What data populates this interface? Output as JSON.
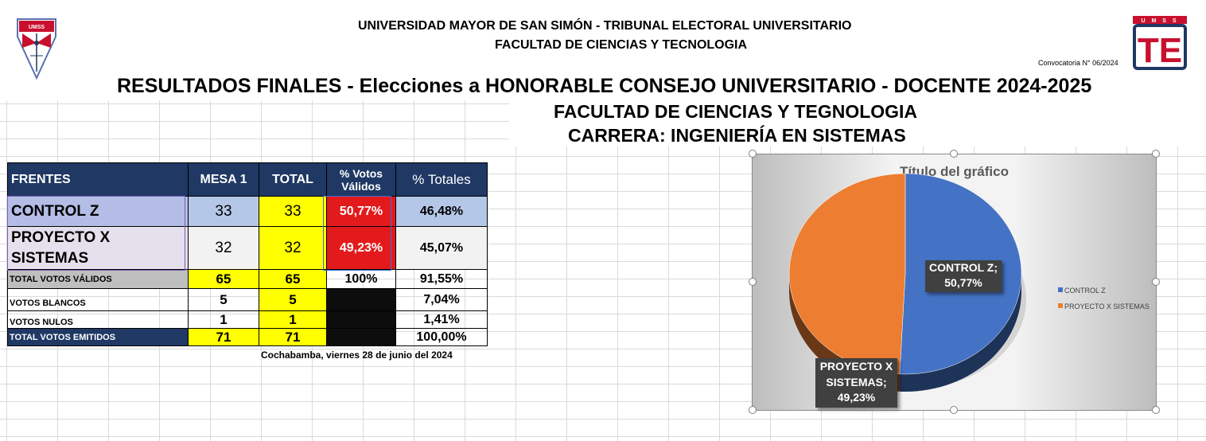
{
  "header": {
    "university": "UNIVERSIDAD MAYOR DE SAN SIMÓN - TRIBUNAL ELECTORAL UNIVERSITARIO",
    "faculty": "FACULTAD DE CIENCIAS Y TECNOLOGIA",
    "convocatoria": "Convocatoria N° 06/2024",
    "title": "RESULTADOS FINALES - Elecciones a HONORABLE CONSEJO UNIVERSITARIO - DOCENTE 2024-2025",
    "subtitle_faculty": "FACULTAD DE CIENCIAS Y TEGNOLOGIA",
    "subtitle_career": "CARRERA: INGENIERÍA EN SISTEMAS"
  },
  "logos": {
    "left_text": "UMSS",
    "right_top": "U M S S",
    "right_letters": "TE"
  },
  "table": {
    "headers": {
      "frentes": "FRENTES",
      "mesa1": "MESA 1",
      "total": "TOTAL",
      "votos_validos": "% Votos Válidos",
      "totales": "% Totales"
    },
    "rows": [
      {
        "name": "CONTROL Z",
        "mesa1": "33",
        "total": "33",
        "pct_validos": "50,77%",
        "pct_totales": "46,48%"
      },
      {
        "name": "PROYECTO X SISTEMAS",
        "mesa1": "32",
        "total": "32",
        "pct_validos": "49,23%",
        "pct_totales": "45,07%"
      }
    ],
    "summary": [
      {
        "label": "TOTAL VOTOS VÁLIDOS",
        "mesa1": "65",
        "total": "65",
        "pct_validos": "100%",
        "pct_totales": "91,55%"
      },
      {
        "label": "VOTOS BLANCOS",
        "mesa1": "5",
        "total": "5",
        "pct_validos": "",
        "pct_totales": "7,04%"
      },
      {
        "label": "VOTOS NULOS",
        "mesa1": "1",
        "total": "1",
        "pct_validos": "",
        "pct_totales": "1,41%"
      },
      {
        "label": "TOTAL VOTOS EMITIDOS",
        "mesa1": "71",
        "total": "71",
        "pct_validos": "",
        "pct_totales": "100,00%"
      }
    ],
    "footer_date": "Cochabamba, viernes 28 de junio del 2024"
  },
  "chart_data": {
    "type": "pie",
    "title": "Título del gráfico",
    "categories": [
      "CONTROL Z",
      "PROYECTO X SISTEMAS"
    ],
    "values": [
      50.77,
      49.23
    ],
    "labels": [
      {
        "name": "CONTROL Z;",
        "value": "50,77%"
      },
      {
        "name": "PROYECTO X SISTEMAS;",
        "value": "49,23%"
      }
    ],
    "colors": [
      "#4472c4",
      "#ed7d31"
    ],
    "legend_position": "right"
  },
  "colors": {
    "header_navy": "#1f3864",
    "highlight_yellow": "#ffff00",
    "alert_red": "#e31a1c"
  }
}
